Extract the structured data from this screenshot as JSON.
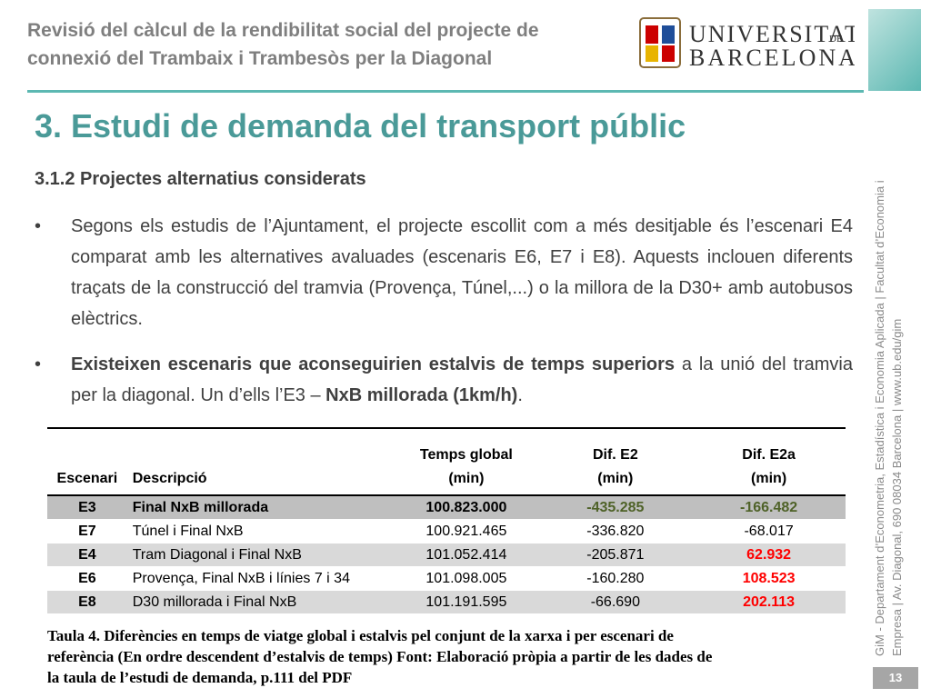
{
  "header": {
    "title_lines": [
      "Revisió del càlcul de la rendibilitat social del projecte de",
      "connexió del Trambaix i Trambesòs per la Diagonal"
    ],
    "logo": {
      "word1": "UNIVERSITAT",
      "word2": "DE",
      "word3": "BARCELONA"
    }
  },
  "heading": "3. Estudi de demanda del transport públic",
  "subheading": "3.1.2 Projectes alternatius considerats",
  "bullets": [
    {
      "parts": [
        {
          "text": "Segons els estudis de l’Ajuntament, el projecte escollit com a més desitjable és l’escenari E4 comparat amb les alternatives avaluades (escenaris E6, E7 i E8). Aquests inclouen diferents traçats de la construcció del tramvia (Provença, Túnel,...) o la millora de la D30+ amb autobusos elèctrics.",
          "bold": false
        }
      ]
    },
    {
      "parts": [
        {
          "text": "Existeixen escenaris que aconseguirien estalvis de temps superiors",
          "bold": true
        },
        {
          "text": " a la unió del tramvia per la diagonal. Un d’ells l’E3 – ",
          "bold": false
        },
        {
          "text": "NxB millorada (1km/h)",
          "bold": true
        },
        {
          "text": ".",
          "bold": false
        }
      ]
    }
  ],
  "table": {
    "header": [
      [
        "Escenari"
      ],
      [
        "Descripció"
      ],
      [
        "Temps global",
        "(min)"
      ],
      [
        "Dif. E2",
        "(min)"
      ],
      [
        "Dif. E2a",
        "(min)"
      ]
    ],
    "rows": [
      [
        "E3",
        "Final NxB millorada",
        "100.823.000",
        "-435.285",
        "-166.482"
      ],
      [
        "E7",
        "Túnel i Final NxB",
        "100.921.465",
        "-336.820",
        "-68.017"
      ],
      [
        "E4",
        "Tram Diagonal i Final NxB",
        "101.052.414",
        "-205.871",
        "62.932"
      ],
      [
        "E6",
        "Provença, Final NxB i línies 7 i 34",
        "101.098.005",
        "-160.280",
        "108.523"
      ],
      [
        "E8",
        "D30 millorada i Final NxB",
        "101.191.595",
        "-66.690",
        "202.113"
      ]
    ]
  },
  "caption": [
    "Taula 4. Diferències en temps de viatge global i estalvis pel conjunt de la xarxa i per escenari de",
    "referència (En ordre descendent d’estalvis de temps) Font: Elaboració pròpia a partir de les dades de",
    "la taula de l’estudi de demanda, p.111 del PDF"
  ],
  "sidebar": [
    "GiM - Departament d’Econometria, Estadística i Economia Aplicada | Facultat d’Economia i",
    "Empresa | Av. Diagonal, 690 08034 Barcelona | www.ub.edu/gim"
  ],
  "page_number": "13"
}
